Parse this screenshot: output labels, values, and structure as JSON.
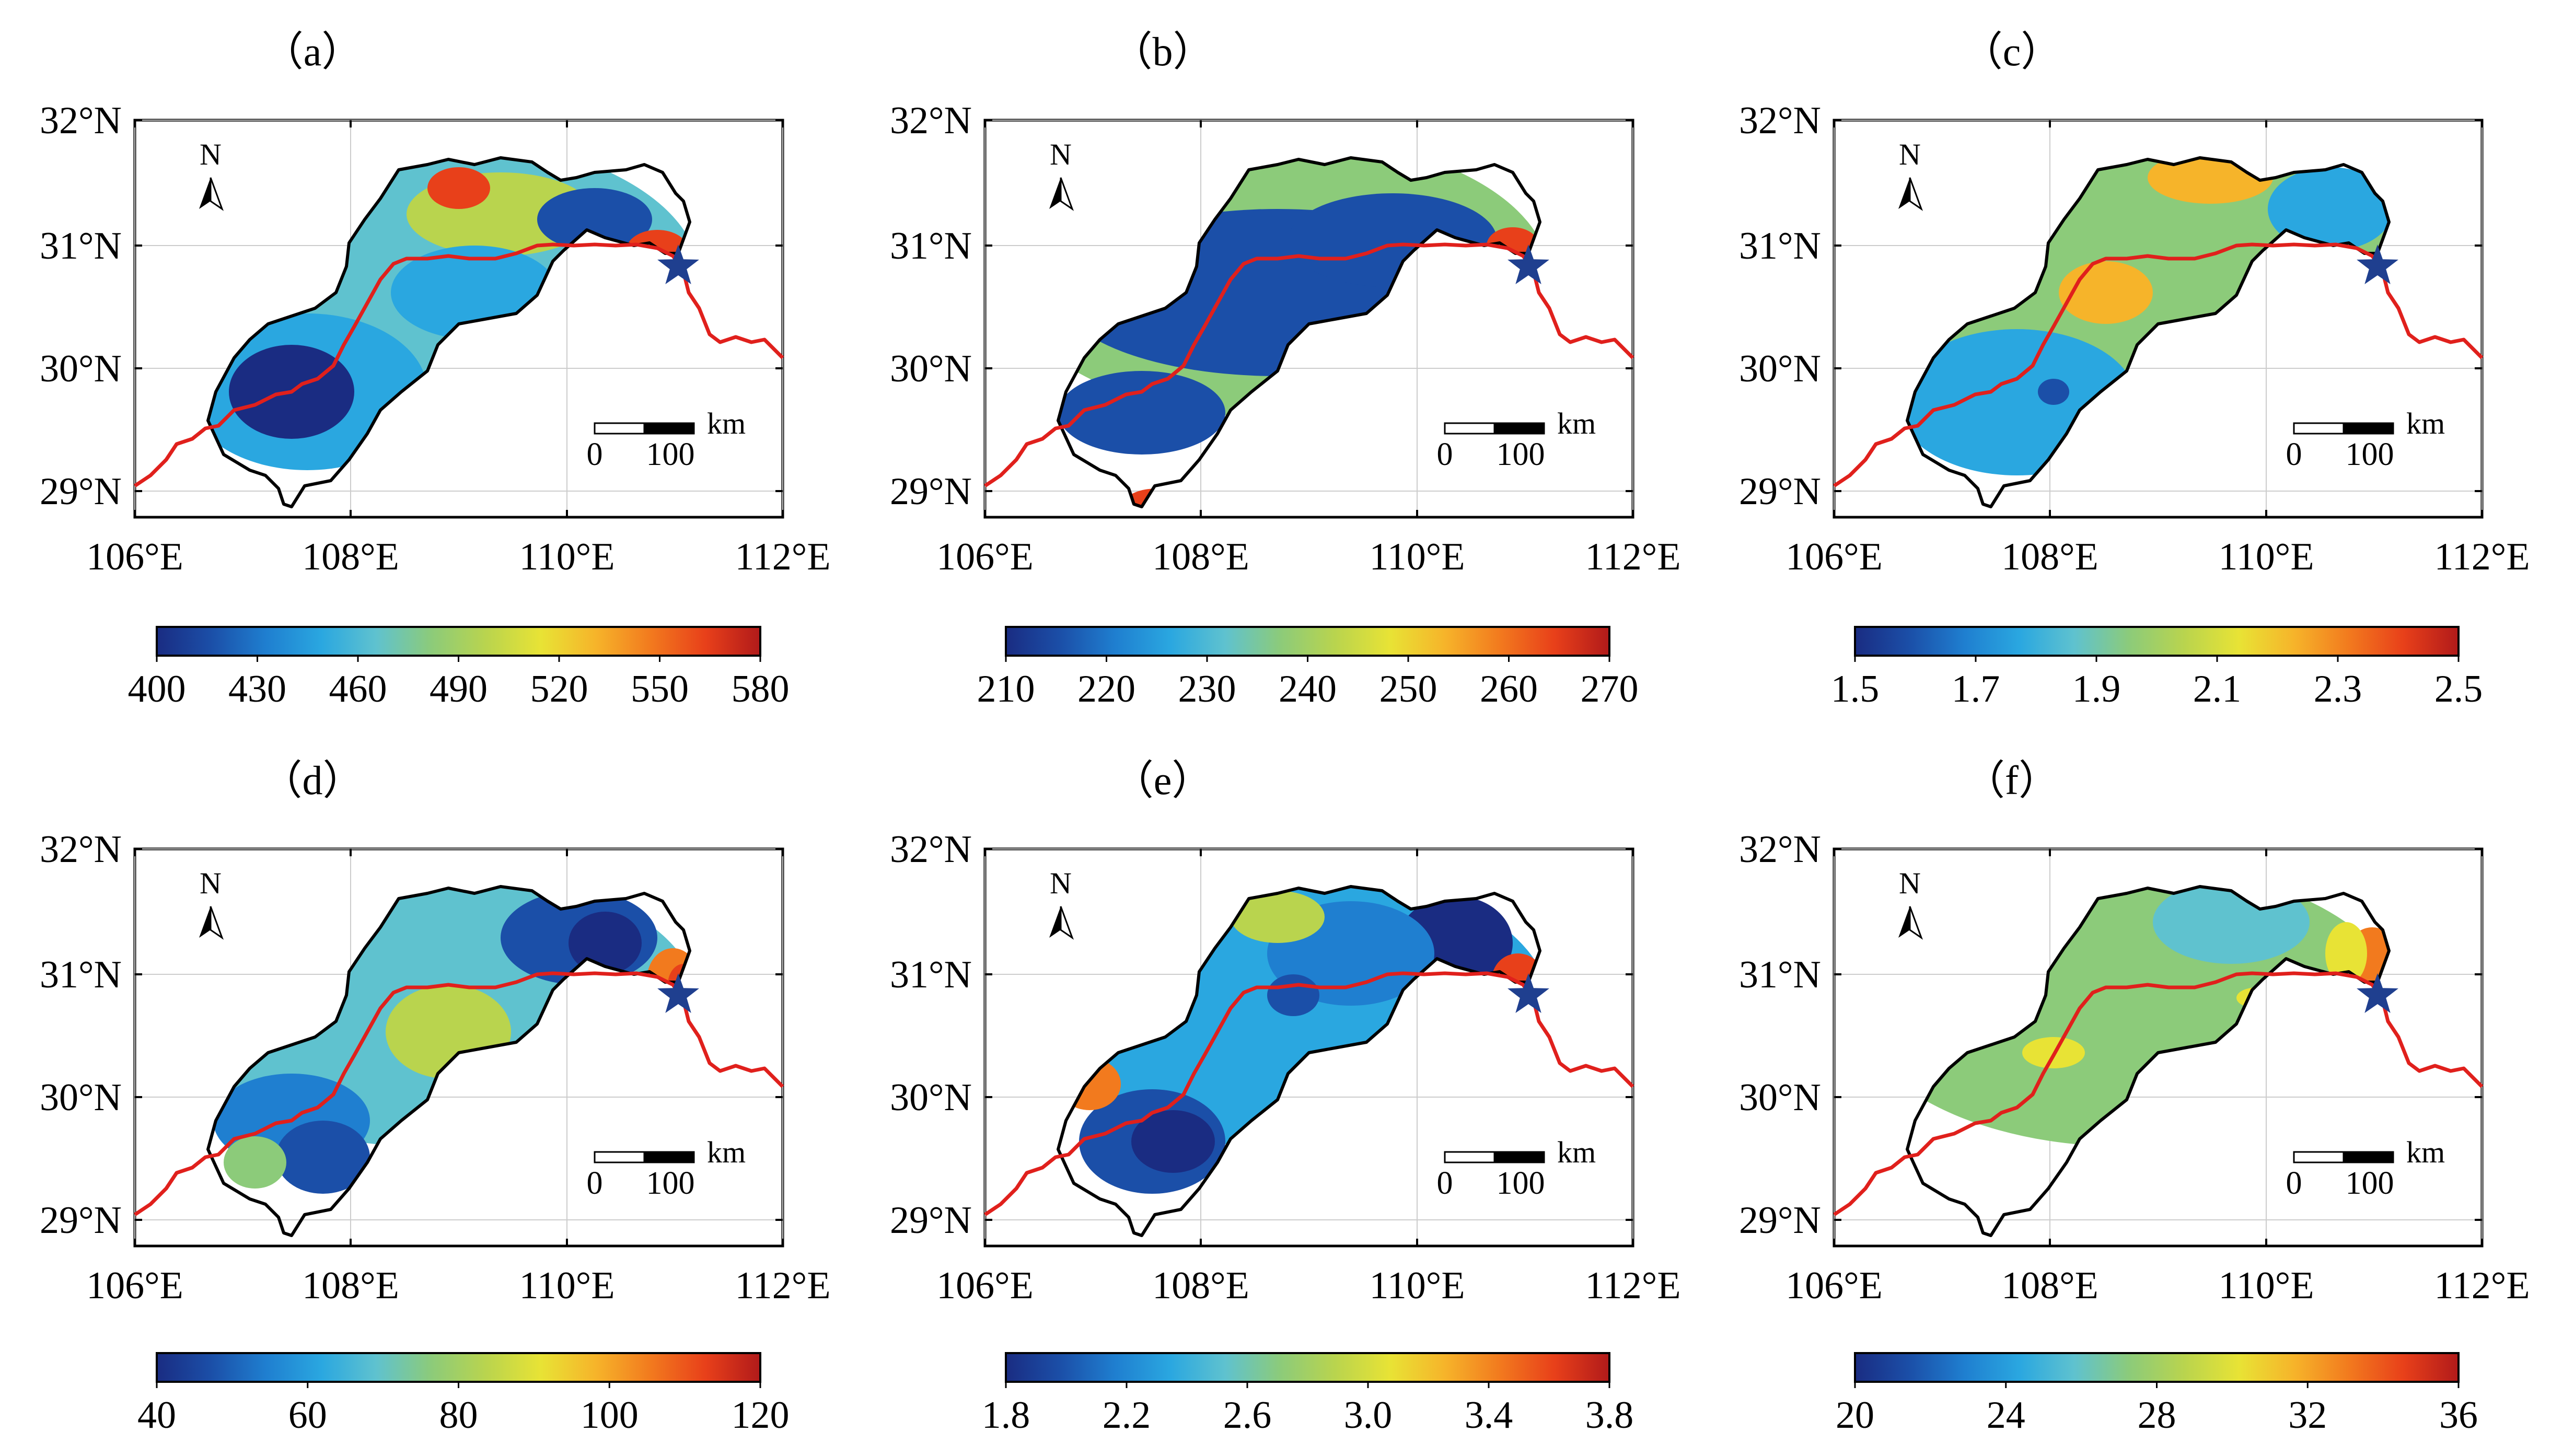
{
  "panels": [
    {
      "label": "（a）",
      "colorbar_ticks": [
        "400",
        "430",
        "460",
        "490",
        "520",
        "550",
        "580"
      ]
    },
    {
      "label": "（b）",
      "colorbar_ticks": [
        "210",
        "220",
        "230",
        "240",
        "250",
        "260",
        "270"
      ]
    },
    {
      "label": "（c）",
      "colorbar_ticks": [
        "1.5",
        "1.7",
        "1.9",
        "2.1",
        "2.3",
        "2.5"
      ]
    },
    {
      "label": "（d）",
      "colorbar_ticks": [
        "40",
        "60",
        "80",
        "100",
        "120"
      ]
    },
    {
      "label": "（e）",
      "colorbar_ticks": [
        "1.8",
        "2.2",
        "2.6",
        "3.0",
        "3.4",
        "3.8"
      ]
    },
    {
      "label": "（f）",
      "colorbar_ticks": [
        "20",
        "24",
        "28",
        "32",
        "36"
      ]
    }
  ],
  "map_axes": {
    "lat_labels": [
      "32°N",
      "31°N",
      "30°N",
      "29°N"
    ],
    "lon_labels": [
      "106°E",
      "108°E",
      "110°E",
      "112°E"
    ],
    "north_arrow": "N",
    "scale_bar": {
      "zero": "0",
      "distance": "100",
      "unit": "km"
    }
  },
  "colormap": [
    "#1a2c82",
    "#1b4fa8",
    "#1f7fd0",
    "#2aa7e0",
    "#5fc2cf",
    "#8ccb7a",
    "#b9d44e",
    "#e8e335",
    "#f6b42a",
    "#f27a1e",
    "#e8401a",
    "#b11a1a"
  ],
  "colors": {
    "river": "#e0201c",
    "station_star": "#1f3f8f",
    "basin_outline": "#000000"
  }
}
